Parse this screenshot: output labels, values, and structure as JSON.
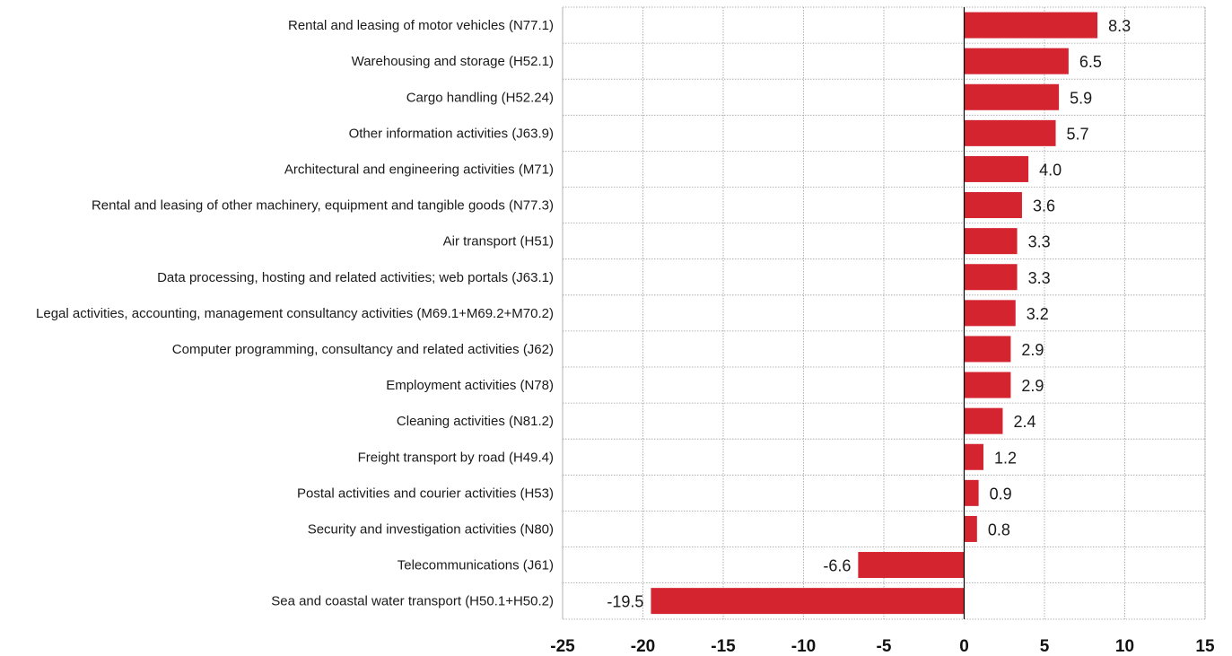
{
  "colors": {
    "bar": "#d42430"
  },
  "chart_data": {
    "type": "bar",
    "orientation": "horizontal",
    "categories": [
      "Rental and leasing of motor vehicles (N77.1)",
      "Warehousing and storage (H52.1)",
      "Cargo handling (H52.24)",
      "Other information activities (J63.9)",
      "Architectural and engineering activities (M71)",
      "Rental and leasing of other machinery, equipment and tangible goods (N77.3)",
      "Air transport (H51)",
      "Data processing, hosting and related activities; web portals (J63.1)",
      "Legal activities, accounting, management consultancy activities (M69.1+M69.2+M70.2)",
      "Computer programming, consultancy and related activities (J62)",
      "Employment activities (N78)",
      "Cleaning activities (N81.2)",
      "Freight transport by road (H49.4)",
      "Postal activities and courier activities (H53)",
      "Security and investigation activities (N80)",
      "Telecommunications (J61)",
      "Sea and coastal water transport (H50.1+H50.2)"
    ],
    "values": [
      8.3,
      6.5,
      5.9,
      5.7,
      4.0,
      3.6,
      3.3,
      3.3,
      3.2,
      2.9,
      2.9,
      2.4,
      1.2,
      0.9,
      0.8,
      -6.6,
      -19.5
    ],
    "value_labels": [
      "8.3",
      "6.5",
      "5.9",
      "5.7",
      "4.0",
      "3.6",
      "3.3",
      "3.3",
      "3.2",
      "2.9",
      "2.9",
      "2.4",
      "1.2",
      "0.9",
      "0.8",
      "-6.6",
      "-19.5"
    ],
    "xlim": [
      -25,
      15
    ],
    "xticks": [
      -25,
      -20,
      -15,
      -10,
      -5,
      0,
      5,
      10,
      15
    ],
    "xtick_labels": [
      "-25",
      "-20",
      "-15",
      "-10",
      "-5",
      "0",
      "5",
      "10",
      "15"
    ],
    "title": "",
    "xlabel": "",
    "ylabel": "",
    "grid": true,
    "legend": "none"
  }
}
